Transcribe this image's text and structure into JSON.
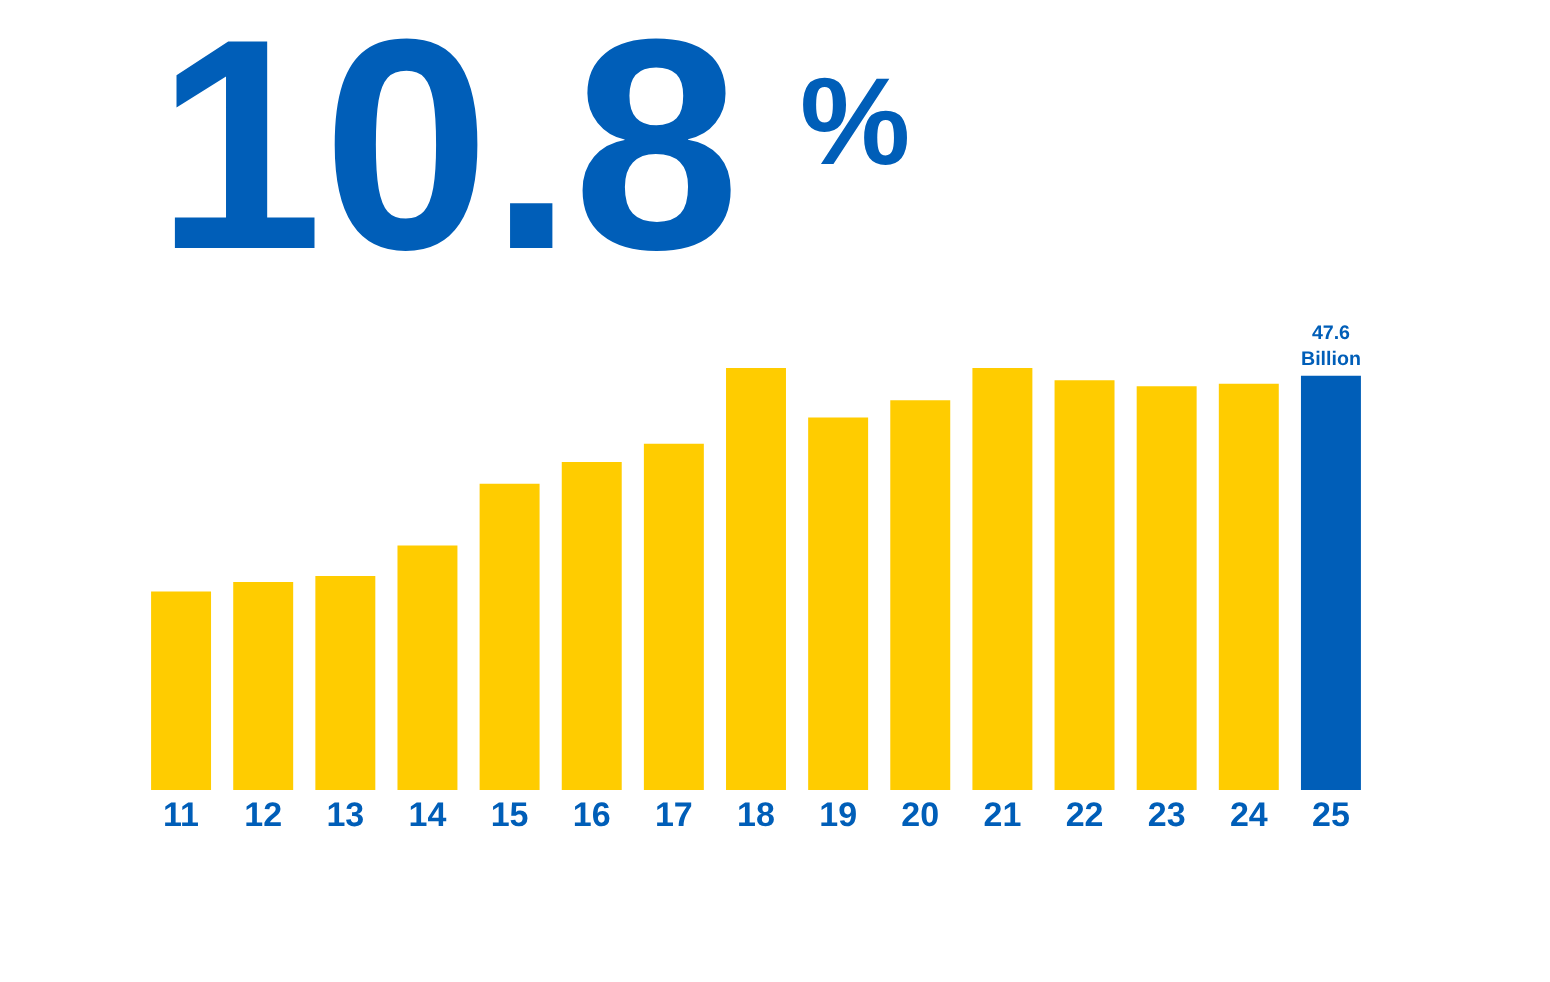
{
  "chart_data": {
    "type": "bar",
    "categories": [
      "11",
      "12",
      "13",
      "14",
      "15",
      "16",
      "17",
      "18",
      "19",
      "20",
      "21",
      "22",
      "23",
      "24",
      "25"
    ],
    "values": [
      22.8,
      23.9,
      24.6,
      28.1,
      35.2,
      37.7,
      39.8,
      48.5,
      42.8,
      44.8,
      48.5,
      47.1,
      46.4,
      46.7,
      47.6
    ],
    "colors": [
      "#ffcc00",
      "#ffcc00",
      "#ffcc00",
      "#ffcc00",
      "#ffcc00",
      "#ffcc00",
      "#ffcc00",
      "#ffcc00",
      "#ffcc00",
      "#ffcc00",
      "#ffcc00",
      "#ffcc00",
      "#ffcc00",
      "#ffcc00",
      "#005eb8"
    ],
    "value_labels": [
      null,
      null,
      null,
      null,
      null,
      null,
      null,
      null,
      null,
      null,
      null,
      null,
      null,
      null,
      "47.6\nBillion"
    ],
    "ylim": [
      0,
      48.5
    ],
    "tick_labels": "x",
    "annotations": [
      "10.8",
      "%"
    ]
  }
}
